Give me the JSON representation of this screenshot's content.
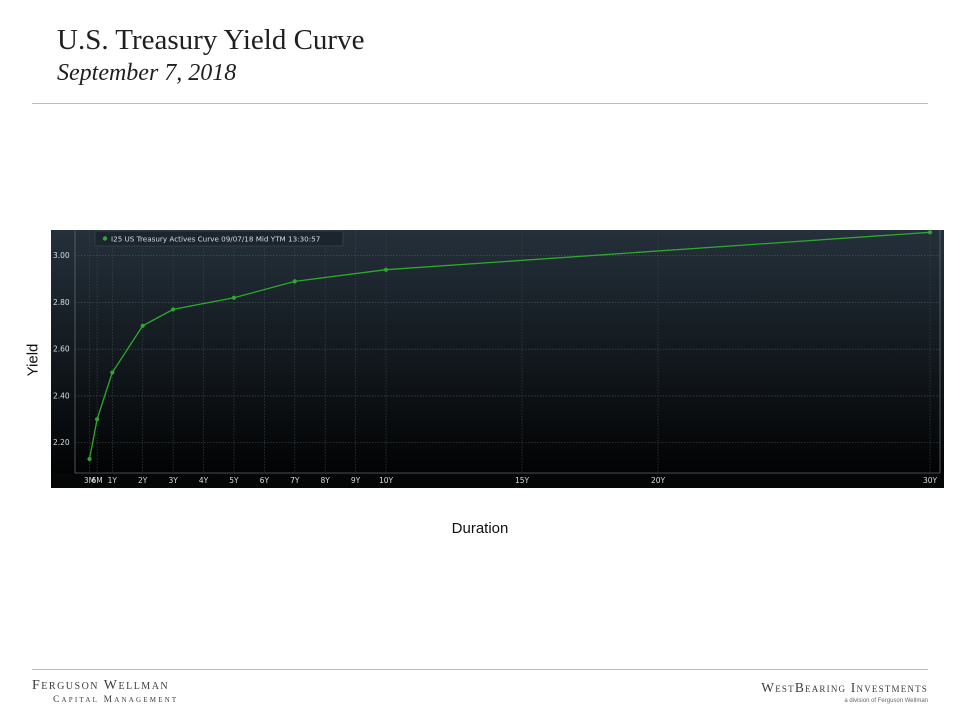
{
  "slide": {
    "title": "U.S. Treasury Yield Curve",
    "subtitle": "September 7, 2018"
  },
  "colors": {
    "line": "#2fa82f",
    "chart_background_top": "#24303a",
    "chart_background_bottom": "#000000",
    "rule": "#c9b8a6"
  },
  "chart_data": {
    "type": "line",
    "xlabel": "Duration",
    "ylabel": "Yield",
    "legend": "I25 US Treasury Actives Curve 09/07/18 Mid YTM 13:30:57",
    "legend_position": "top-left",
    "grid": true,
    "ylim": [
      2.07,
      3.11
    ],
    "yticks": [
      2.2,
      2.4,
      2.6,
      2.8,
      3.0
    ],
    "ytick_labels": [
      "2.20",
      "2.40",
      "2.60",
      "2.80",
      "3.00"
    ],
    "xlim": [
      0.25,
      30
    ],
    "x_ticks": [
      0.25,
      0.5,
      1,
      2,
      3,
      4,
      5,
      6,
      7,
      8,
      9,
      10,
      15,
      20,
      30
    ],
    "categories": [
      "3M",
      "6M",
      "1Y",
      "2Y",
      "3Y",
      "4Y",
      "5Y",
      "6Y",
      "7Y",
      "8Y",
      "9Y",
      "10Y",
      "15Y",
      "20Y",
      "30Y"
    ],
    "series": [
      {
        "name": "I25 US Treasury Actives Curve 09/07/18 Mid YTM 13:30:57",
        "x": [
          0.25,
          0.5,
          1,
          2,
          3,
          5,
          7,
          10,
          30
        ],
        "y": [
          2.13,
          2.3,
          2.5,
          2.7,
          2.77,
          2.82,
          2.89,
          2.94,
          3.1
        ]
      }
    ]
  },
  "footer": {
    "left_line1": "Ferguson Wellman",
    "left_line2": "Capital Management",
    "right_line1": "WestBearing Investments",
    "right_line2": "a division of Ferguson Wellman"
  }
}
